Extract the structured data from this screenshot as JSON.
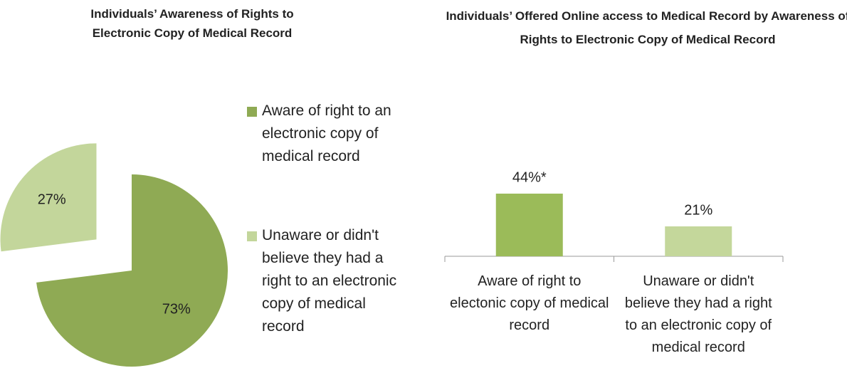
{
  "chart_data": [
    {
      "type": "pie",
      "title": "Individuals’ Awareness of Rights to Electronic Copy of Medical Record",
      "categories": [
        "Aware of right to an electronic copy of medical record",
        "Unaware or didn't believe they had a right to an electronic copy of medical record"
      ],
      "values": [
        73,
        27
      ],
      "value_labels": [
        "73%",
        "27%"
      ],
      "colors": [
        "#8faa54",
        "#c3d69b"
      ]
    },
    {
      "type": "bar",
      "title": "Individuals’ Offered Online access to Medical Record by Awareness of Rights to Electronic Copy of Medical Record",
      "categories": [
        "Aware of right to electonic copy of medical record",
        "Unaware or didn't believe they had a right to an electronic copy of medical record"
      ],
      "values": [
        44,
        21
      ],
      "value_labels": [
        "44%*",
        "21%"
      ],
      "colors": [
        "#9bbb59",
        "#c4d79b"
      ]
    }
  ]
}
